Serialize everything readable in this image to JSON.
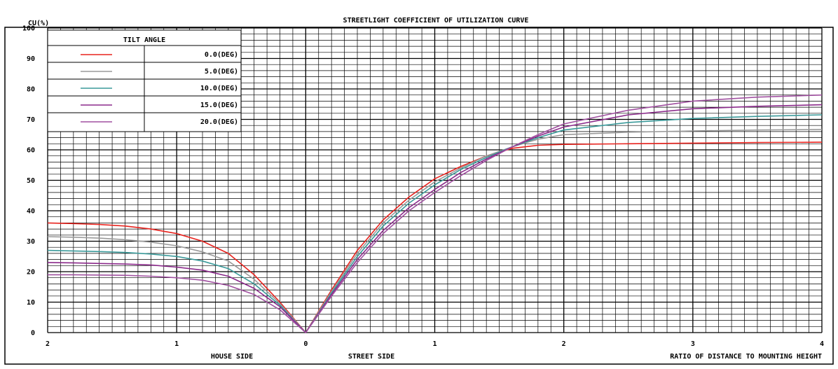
{
  "chart_data": {
    "type": "line",
    "title": "STREETLIGHT COEFFICIENT OF UTILIZATION CURVE",
    "ylabel": "CU(%)",
    "xlabel": "RATIO OF DISTANCE TO MOUNTING HEIGHT",
    "house_side_label": "HOUSE SIDE",
    "street_side_label": "STREET SIDE",
    "xlim": [
      -2,
      4
    ],
    "ylim": [
      0,
      100
    ],
    "x_tick_values": [
      -2,
      -1,
      0,
      1,
      2,
      3,
      4
    ],
    "x_tick_labels": [
      "2",
      "1",
      "0",
      "1",
      "2",
      "3",
      "4"
    ],
    "y_tick_values": [
      0,
      10,
      20,
      30,
      40,
      50,
      60,
      70,
      80,
      90,
      100
    ],
    "y_tick_labels": [
      "0",
      "10",
      "20",
      "30",
      "40",
      "50",
      "60",
      "70",
      "80",
      "90",
      "100"
    ],
    "grid": true,
    "legend": {
      "title": "TILT ANGLE",
      "placement": "top-left"
    },
    "series": [
      {
        "name": "0.0(DEG)",
        "color": "#e8231e",
        "x": [
          -2,
          -1.8,
          -1.6,
          -1.4,
          -1.2,
          -1,
          -0.8,
          -0.6,
          -0.4,
          -0.2,
          0,
          0.2,
          0.4,
          0.6,
          0.8,
          1,
          1.2,
          1.4,
          1.6,
          1.8,
          2,
          2.5,
          3,
          3.5,
          4
        ],
        "values": [
          36,
          35.8,
          35.5,
          35,
          34,
          32.5,
          30,
          26,
          19,
          10,
          0,
          14,
          27,
          37,
          44.5,
          50.5,
          54.5,
          58,
          60.5,
          61.5,
          61.8,
          62,
          62.2,
          62.4,
          62.5
        ]
      },
      {
        "name": "5.0(DEG)",
        "color": "#9a9a9a",
        "x": [
          -2,
          -1.8,
          -1.6,
          -1.4,
          -1.2,
          -1,
          -0.8,
          -0.6,
          -0.4,
          -0.2,
          0,
          0.2,
          0.4,
          0.6,
          0.8,
          1,
          1.2,
          1.4,
          1.6,
          1.8,
          2,
          2.5,
          3,
          3.5,
          4
        ],
        "values": [
          31.5,
          31.3,
          31,
          30.5,
          29.7,
          28.5,
          26.5,
          23.5,
          17.5,
          9.5,
          0,
          13.5,
          26,
          36,
          43.5,
          49.5,
          54,
          58,
          61,
          63.5,
          65,
          65.8,
          66.2,
          66.5,
          66.7
        ]
      },
      {
        "name": "10.0(DEG)",
        "color": "#3a9a9a",
        "x": [
          -2,
          -1.8,
          -1.6,
          -1.4,
          -1.2,
          -1,
          -0.8,
          -0.6,
          -0.4,
          -0.2,
          0,
          0.2,
          0.4,
          0.6,
          0.8,
          1,
          1.2,
          1.4,
          1.6,
          1.8,
          2,
          2.5,
          3,
          3.5,
          4
        ],
        "values": [
          27,
          26.8,
          26.6,
          26.3,
          25.8,
          25,
          23.5,
          21,
          16,
          9,
          0,
          13,
          25,
          35,
          42.5,
          48.5,
          53.5,
          57.5,
          61,
          64,
          66.5,
          69,
          70.3,
          71,
          71.5
        ]
      },
      {
        "name": "15.0(DEG)",
        "color": "#8b2a8b",
        "x": [
          -2,
          -1.8,
          -1.6,
          -1.4,
          -1.2,
          -1,
          -0.8,
          -0.6,
          -0.4,
          -0.2,
          0,
          0.2,
          0.4,
          0.6,
          0.8,
          1,
          1.2,
          1.4,
          1.6,
          1.8,
          2,
          2.5,
          3,
          3.5,
          4
        ],
        "values": [
          23,
          22.9,
          22.7,
          22.5,
          22.2,
          21.5,
          20.5,
          18.5,
          14.5,
          8.5,
          0,
          12.5,
          24,
          33.5,
          41,
          47,
          52.5,
          57,
          61,
          64.5,
          67.5,
          71.5,
          73.5,
          74.3,
          74.8
        ]
      },
      {
        "name": "20.0(DEG)",
        "color": "#a050a0",
        "x": [
          -2,
          -1.8,
          -1.6,
          -1.4,
          -1.2,
          -1,
          -0.8,
          -0.6,
          -0.4,
          -0.2,
          0,
          0.2,
          0.4,
          0.6,
          0.8,
          1,
          1.2,
          1.4,
          1.6,
          1.8,
          2,
          2.5,
          3,
          3.5,
          4
        ],
        "values": [
          19,
          19,
          18.9,
          18.8,
          18.5,
          18,
          17.2,
          15.5,
          12.5,
          7.5,
          0,
          12,
          23,
          32.5,
          40,
          46,
          51.5,
          56.5,
          61,
          65,
          68.5,
          73,
          76,
          77.3,
          78
        ]
      }
    ]
  }
}
